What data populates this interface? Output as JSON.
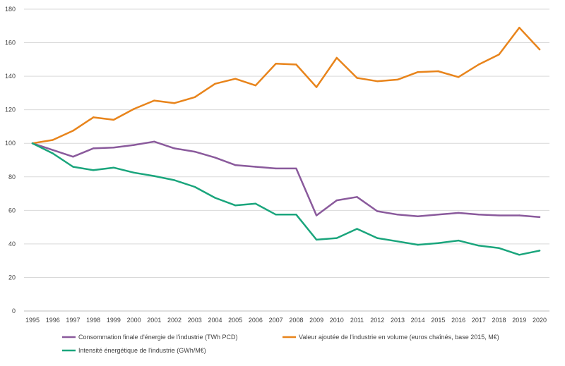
{
  "chart_data": {
    "type": "line",
    "title": "",
    "xlabel": "",
    "ylabel": "",
    "ylim": [
      0,
      180
    ],
    "yticks": [
      0,
      20,
      40,
      60,
      80,
      100,
      120,
      140,
      160,
      180
    ],
    "grid": true,
    "legend_position": "bottom",
    "categories": [
      "1995",
      "1996",
      "1997",
      "1998",
      "1999",
      "2000",
      "2001",
      "2002",
      "2003",
      "2004",
      "2005",
      "2006",
      "2007",
      "2008",
      "2009",
      "2010",
      "2011",
      "2012",
      "2013",
      "2014",
      "2015",
      "2016",
      "2017",
      "2018",
      "2019",
      "2020"
    ],
    "series": [
      {
        "name": "Consommation finale d'énergie de l'industrie (TWh PCD)",
        "color": "#8a5a9c",
        "values": [
          100,
          96,
          92,
          97,
          97.5,
          99,
          101,
          97,
          95,
          91.5,
          87,
          86,
          85,
          85,
          57,
          66,
          68,
          59.5,
          57.5,
          56.5,
          57.5,
          58.5,
          57.5,
          57,
          57,
          56
        ]
      },
      {
        "name": "Valeur ajoutée de l'industrie en volume (euros chaînés, base 2015, M€)",
        "color": "#e8841b",
        "values": [
          100,
          102,
          107.5,
          115.5,
          114,
          120.5,
          125.5,
          124,
          127.5,
          135.5,
          138.5,
          134.5,
          147.5,
          147,
          133.5,
          151,
          139,
          137,
          138,
          142.5,
          143,
          139.5,
          147,
          153,
          169,
          156
        ]
      },
      {
        "name": "Intensité énergétique de l'industrie (GWh/M€)",
        "color": "#1aa57c",
        "values": [
          100,
          94,
          86,
          84,
          85.5,
          82.5,
          80.5,
          78,
          74,
          67.5,
          63,
          64,
          57.5,
          57.5,
          42.5,
          43.5,
          49,
          43.5,
          41.5,
          39.5,
          40.5,
          42,
          39,
          37.5,
          33.5,
          36
        ]
      }
    ]
  }
}
